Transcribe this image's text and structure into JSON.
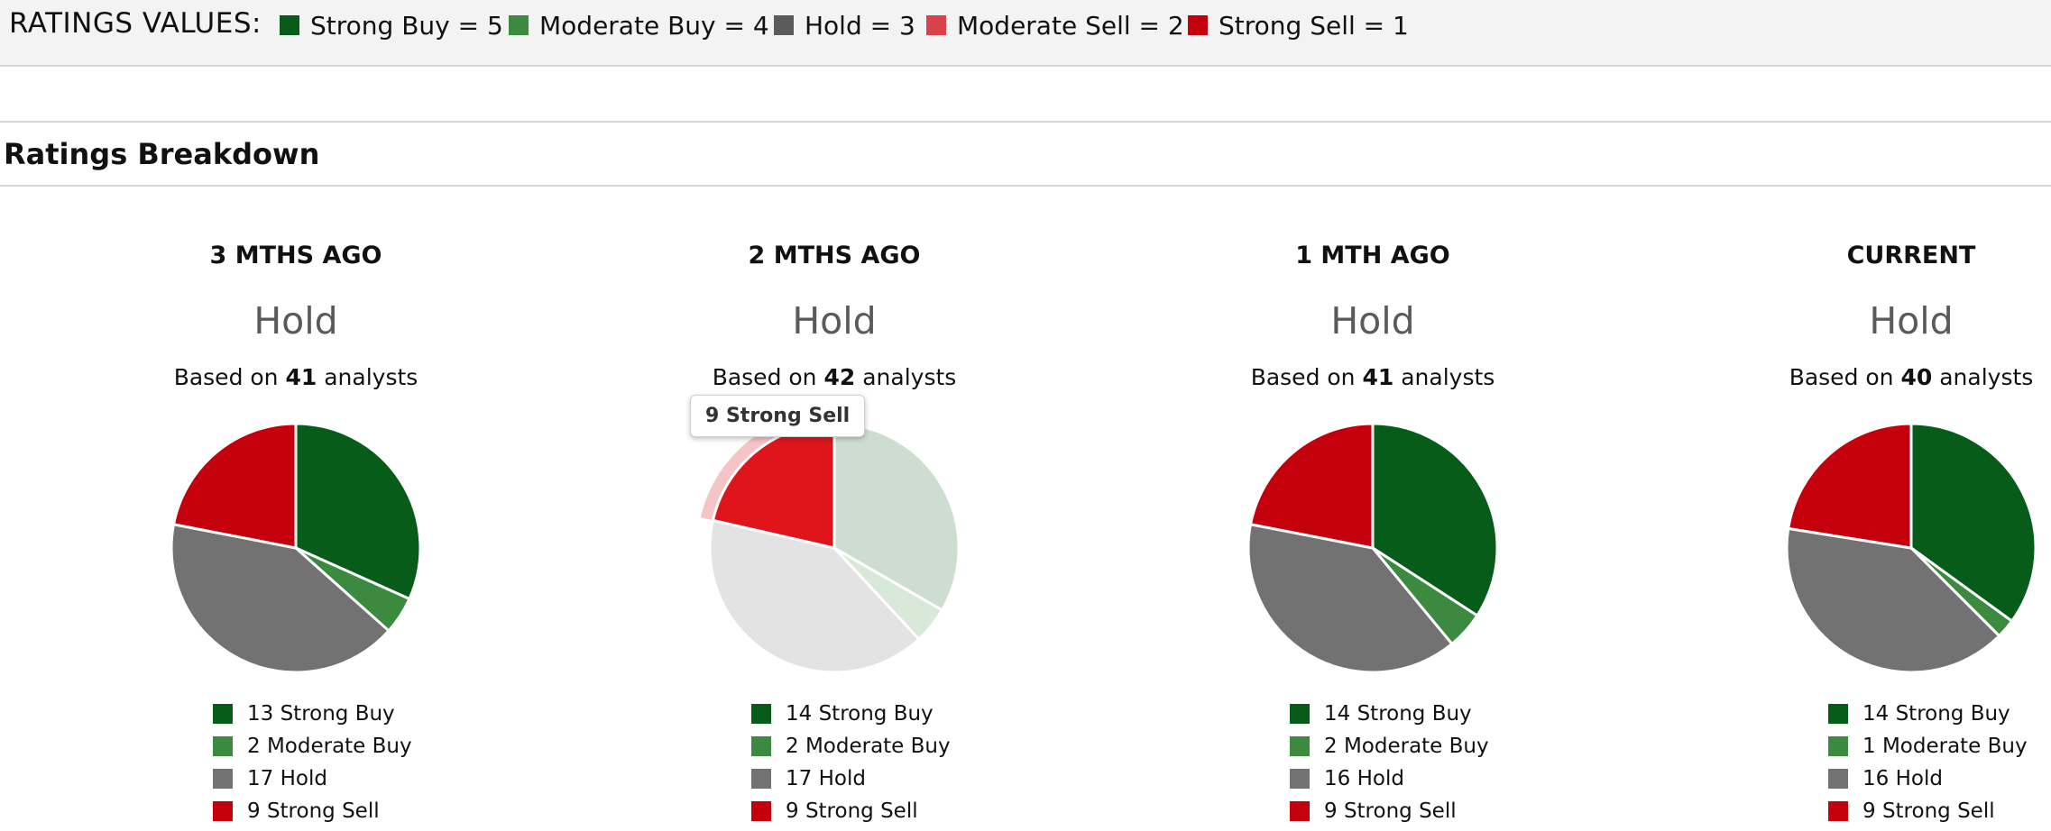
{
  "ratings_values": {
    "title": "RATINGS VALUES:",
    "items": [
      {
        "label": "Strong Buy = 5",
        "color": "#075c1a"
      },
      {
        "label": "Moderate Buy = 4",
        "color": "#3b8a40"
      },
      {
        "label": "Hold = 3",
        "color": "#5b5b5b"
      },
      {
        "label": "Moderate Sell = 2",
        "color": "#d8424a"
      },
      {
        "label": "Strong Sell = 1",
        "color": "#c4000c"
      }
    ]
  },
  "section": {
    "title": "Ratings Breakdown"
  },
  "tooltip": {
    "text": "9 Strong Sell"
  },
  "chart_data": [
    {
      "type": "pie",
      "title": "3 MTHS AGO",
      "consensus": "Hold",
      "basis_prefix": "Based on",
      "analysts": "41",
      "basis_suffix": "analysts",
      "categories": [
        "Strong Buy",
        "Moderate Buy",
        "Hold",
        "Strong Sell"
      ],
      "values": [
        13,
        2,
        17,
        9
      ],
      "colors": [
        "#075c1a",
        "#3b8a40",
        "#727272",
        "#c4000c"
      ],
      "legend": [
        "13 Strong Buy",
        "2 Moderate Buy",
        "17 Hold",
        "9 Strong Sell"
      ],
      "highlight": null
    },
    {
      "type": "pie",
      "title": "2 MTHS AGO",
      "consensus": "Hold",
      "basis_prefix": "Based on",
      "analysts": "42",
      "basis_suffix": "analysts",
      "categories": [
        "Strong Buy",
        "Moderate Buy",
        "Hold",
        "Strong Sell"
      ],
      "values": [
        14,
        2,
        17,
        9
      ],
      "colors": [
        "#075c1a",
        "#3b8a40",
        "#727272",
        "#c4000c"
      ],
      "legend": [
        "14 Strong Buy",
        "2 Moderate Buy",
        "17 Hold",
        "9 Strong Sell"
      ],
      "highlight": 3
    },
    {
      "type": "pie",
      "title": "1 MTH AGO",
      "consensus": "Hold",
      "basis_prefix": "Based on",
      "analysts": "41",
      "basis_suffix": "analysts",
      "categories": [
        "Strong Buy",
        "Moderate Buy",
        "Hold",
        "Strong Sell"
      ],
      "values": [
        14,
        2,
        16,
        9
      ],
      "colors": [
        "#075c1a",
        "#3b8a40",
        "#727272",
        "#c4000c"
      ],
      "legend": [
        "14 Strong Buy",
        "2 Moderate Buy",
        "16 Hold",
        "9 Strong Sell"
      ],
      "highlight": null
    },
    {
      "type": "pie",
      "title": "CURRENT",
      "consensus": "Hold",
      "basis_prefix": "Based on",
      "analysts": "40",
      "basis_suffix": "analysts",
      "categories": [
        "Strong Buy",
        "Moderate Buy",
        "Hold",
        "Strong Sell"
      ],
      "values": [
        14,
        1,
        16,
        9
      ],
      "colors": [
        "#075c1a",
        "#3b8a40",
        "#727272",
        "#c4000c"
      ],
      "legend": [
        "14 Strong Buy",
        "1 Moderate Buy",
        "16 Hold",
        "9 Strong Sell"
      ],
      "highlight": null
    }
  ]
}
